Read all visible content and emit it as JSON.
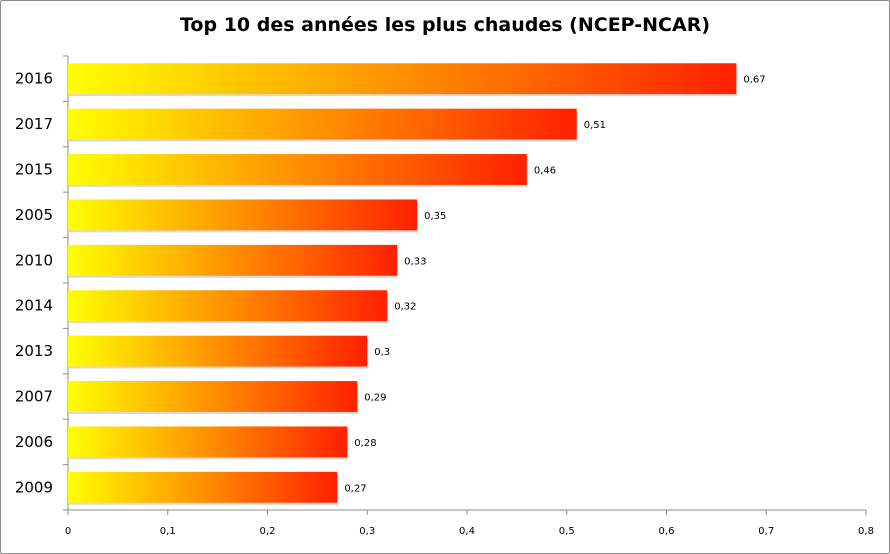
{
  "chart_data": {
    "type": "bar",
    "orientation": "horizontal",
    "title": "Top 10 des années les plus chaudes (NCEP-NCAR)",
    "categories": [
      "2016",
      "2017",
      "2015",
      "2005",
      "2010",
      "2014",
      "2013",
      "2007",
      "2006",
      "2009"
    ],
    "values": [
      0.67,
      0.51,
      0.46,
      0.35,
      0.33,
      0.32,
      0.3,
      0.29,
      0.28,
      0.27
    ],
    "value_labels": [
      "0,67",
      "0,51",
      "0,46",
      "0,35",
      "0,33",
      "0,32",
      "0,3",
      "0,29",
      "0,28",
      "0,27"
    ],
    "xlim": [
      0,
      0.8
    ],
    "x_ticks": [
      0,
      0.1,
      0.2,
      0.3,
      0.4,
      0.5,
      0.6,
      0.7,
      0.8
    ],
    "x_tick_labels": [
      "0",
      "0,1",
      "0,2",
      "0,3",
      "0,4",
      "0,5",
      "0,6",
      "0,7",
      "0,8"
    ],
    "grid": false,
    "bar_gradient": [
      "#ffff00",
      "#ff2000"
    ]
  }
}
